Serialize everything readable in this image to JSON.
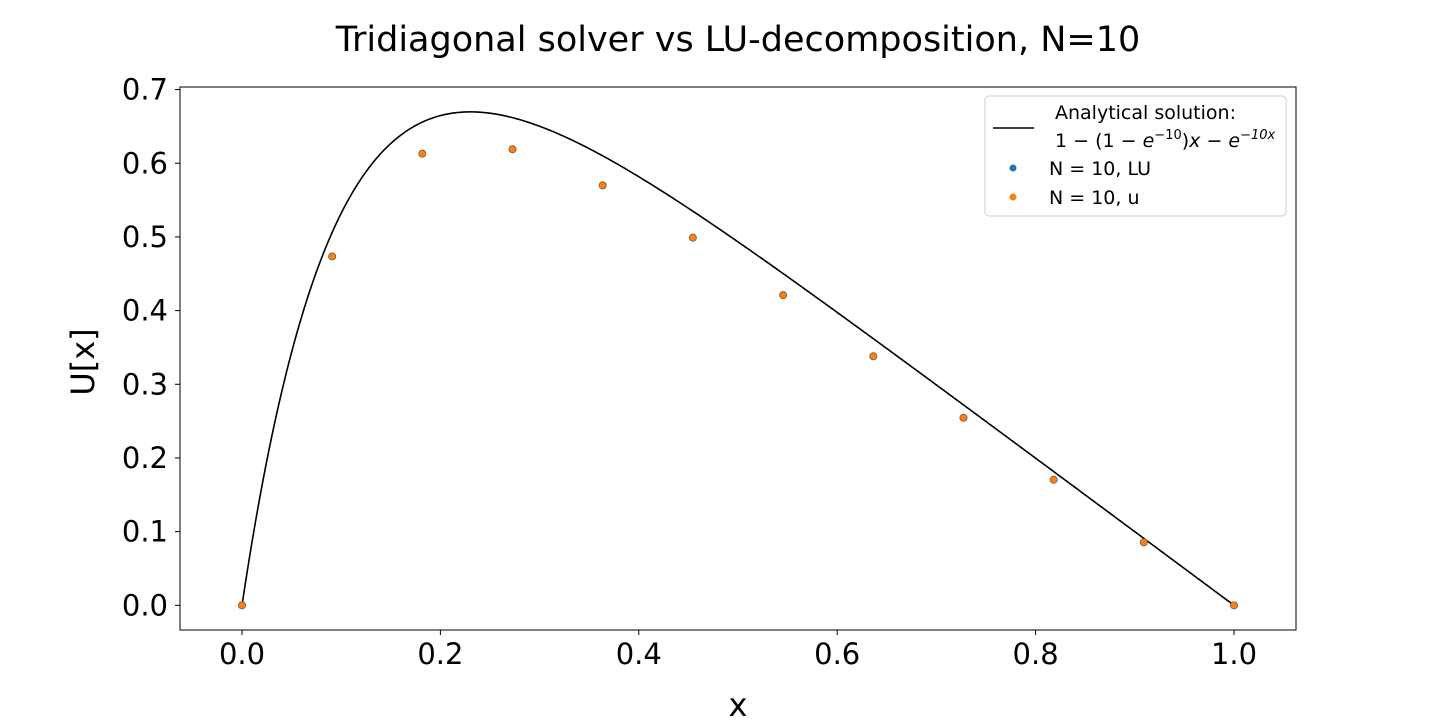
{
  "chart_data": {
    "type": "line",
    "title": "Tridiagonal solver vs LU-decomposition, N=10",
    "xlabel": "x",
    "ylabel": "U[x]",
    "xlim": [
      -0.0625,
      1.0625
    ],
    "ylim": [
      -0.0335,
      0.7035
    ],
    "xticks": [
      "0.0",
      "0.2",
      "0.4",
      "0.6",
      "0.8",
      "1.0"
    ],
    "yticks": [
      "0.0",
      "0.1",
      "0.2",
      "0.3",
      "0.4",
      "0.5",
      "0.6",
      "0.7"
    ],
    "grid": false,
    "legend_position": "top-right",
    "analytical": {
      "legend_line1": "Analytical solution:",
      "legend_formula": "1 − (1 − e^{−10})x − e^{−10x}",
      "color": "#000000"
    },
    "series": [
      {
        "name": "N = 10, LU",
        "color": "#1f77b4",
        "x": [
          0.0,
          0.0909,
          0.1818,
          0.2727,
          0.3636,
          0.4545,
          0.5455,
          0.6364,
          0.7273,
          0.8182,
          0.9091,
          1.0
        ],
        "values": [
          0.0,
          0.4735,
          0.613,
          0.619,
          0.57,
          0.499,
          0.421,
          0.338,
          0.2545,
          0.1705,
          0.0855,
          0.0
        ]
      },
      {
        "name": "N = 10, u",
        "color": "#ff7f0e",
        "x": [
          0.0,
          0.0909,
          0.1818,
          0.2727,
          0.3636,
          0.4545,
          0.5455,
          0.6364,
          0.7273,
          0.8182,
          0.9091,
          1.0
        ],
        "values": [
          0.0,
          0.4735,
          0.613,
          0.619,
          0.57,
          0.499,
          0.421,
          0.338,
          0.2545,
          0.1705,
          0.0855,
          0.0
        ]
      }
    ]
  }
}
